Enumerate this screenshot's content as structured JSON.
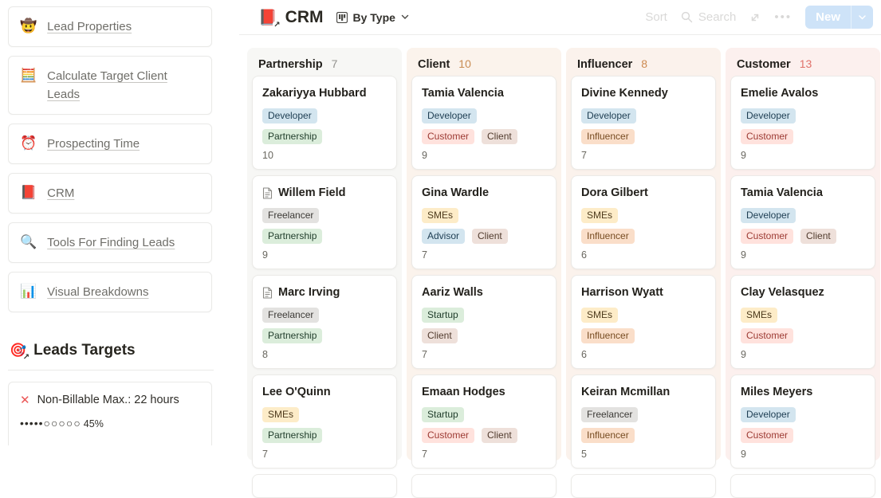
{
  "page": {
    "title": "CRM",
    "title_icon": "📕",
    "link_arrow": "↗"
  },
  "header": {
    "view": {
      "label": "By Type",
      "icon": "board-icon"
    },
    "controls": {
      "sort_label": "Sort",
      "search_label": "Search",
      "more_glyph": "•••",
      "new_label": "New"
    }
  },
  "sidebar": {
    "items": [
      {
        "icon": "🤠",
        "icon_name": "cowboy-emoji-icon",
        "label": "Lead Properties"
      },
      {
        "icon": "🧮",
        "icon_name": "abacus-emoji-icon",
        "label": "Calculate Target Client Leads"
      },
      {
        "icon": "⏰",
        "icon_name": "alarm-clock-emoji-icon",
        "label": "Prospecting Time"
      },
      {
        "icon": "📕",
        "icon_name": "book-emoji-icon",
        "label": "CRM"
      },
      {
        "icon": "🔍",
        "icon_name": "magnifier-emoji-icon",
        "label": "Tools For Finding Leads"
      },
      {
        "icon": "📊",
        "icon_name": "bar-chart-emoji-icon",
        "label": "Visual Breakdowns"
      }
    ],
    "targets": {
      "icon": "🎯",
      "arrow": "↗",
      "heading": "Leads Targets",
      "card": {
        "x_glyph": "✕",
        "label": "Non-Billable Max.: 22 hours",
        "dots": "•••••○○○○○",
        "percent": "45%"
      }
    }
  },
  "board": {
    "tag_palette": {
      "blue": {
        "bg": "#d3e5ef",
        "text": "#1d3d52"
      },
      "green": {
        "bg": "#dbeddb",
        "text": "#1f3c2a"
      },
      "gray": {
        "bg": "#e3e2e0",
        "text": "#3c3a36"
      },
      "yellow": {
        "bg": "#fdecc8",
        "text": "#4d3a1c"
      },
      "orange": {
        "bg": "#fadec9",
        "text": "#774c22"
      },
      "red": {
        "bg": "#ffe2dd",
        "text": "#9c3a33"
      },
      "brown": {
        "bg": "#eee0da",
        "text": "#513b2e"
      }
    },
    "tag_colors": {
      "Developer": "blue",
      "Partnership": "green",
      "Freelancer": "gray",
      "SMEs": "yellow",
      "Customer": "red",
      "Client": "brown",
      "Advisor": "blue",
      "Startup": "green",
      "Influencer": "orange"
    },
    "columns": [
      {
        "name": "Partnership",
        "count": "7",
        "tint": "#f7f7f5",
        "count_color": "#92918d",
        "cards": [
          {
            "name": "Zakariyya Hubbard",
            "page_icon": false,
            "tag_rows": [
              [
                "Developer"
              ],
              [
                "Partnership"
              ]
            ],
            "value": "10"
          },
          {
            "name": "Willem Field",
            "page_icon": true,
            "tag_rows": [
              [
                "Freelancer"
              ],
              [
                "Partnership"
              ]
            ],
            "value": "9"
          },
          {
            "name": "Marc Irving",
            "page_icon": true,
            "tag_rows": [
              [
                "Freelancer"
              ],
              [
                "Partnership"
              ]
            ],
            "value": "8"
          },
          {
            "name": "Lee O'Quinn",
            "page_icon": false,
            "tag_rows": [
              [
                "SMEs"
              ],
              [
                "Partnership"
              ]
            ],
            "value": "7"
          }
        ]
      },
      {
        "name": "Client",
        "count": "10",
        "tint": "#fbf3ec",
        "count_color": "#c98d54",
        "cards": [
          {
            "name": "Tamia Valencia",
            "page_icon": false,
            "tag_rows": [
              [
                "Developer"
              ],
              [
                "Customer",
                "Client"
              ]
            ],
            "value": "9"
          },
          {
            "name": "Gina Wardle",
            "page_icon": false,
            "tag_rows": [
              [
                "SMEs"
              ],
              [
                "Advisor",
                "Client"
              ]
            ],
            "value": "7"
          },
          {
            "name": "Aariz Walls",
            "page_icon": false,
            "tag_rows": [
              [
                "Startup"
              ],
              [
                "Client"
              ]
            ],
            "value": "7"
          },
          {
            "name": "Emaan Hodges",
            "page_icon": false,
            "tag_rows": [
              [
                "Startup"
              ],
              [
                "Customer",
                "Client"
              ]
            ],
            "value": "7"
          }
        ]
      },
      {
        "name": "Influencer",
        "count": "8",
        "tint": "#fbf2ec",
        "count_color": "#cd8a50",
        "cards": [
          {
            "name": "Divine Kennedy",
            "page_icon": false,
            "tag_rows": [
              [
                "Developer"
              ],
              [
                "Influencer"
              ]
            ],
            "value": "7"
          },
          {
            "name": "Dora Gilbert",
            "page_icon": false,
            "tag_rows": [
              [
                "SMEs"
              ],
              [
                "Influencer"
              ]
            ],
            "value": "6"
          },
          {
            "name": "Harrison Wyatt",
            "page_icon": false,
            "tag_rows": [
              [
                "SMEs"
              ],
              [
                "Influencer"
              ]
            ],
            "value": "6"
          },
          {
            "name": "Keiran Mcmillan",
            "page_icon": false,
            "tag_rows": [
              [
                "Freelancer"
              ],
              [
                "Influencer"
              ]
            ],
            "value": "5"
          }
        ]
      },
      {
        "name": "Customer",
        "count": "13",
        "tint": "#fcf0ee",
        "count_color": "#e0716a",
        "cards": [
          {
            "name": "Emelie Avalos",
            "page_icon": false,
            "tag_rows": [
              [
                "Developer"
              ],
              [
                "Customer"
              ]
            ],
            "value": "9"
          },
          {
            "name": "Tamia Valencia",
            "page_icon": false,
            "tag_rows": [
              [
                "Developer"
              ],
              [
                "Customer",
                "Client"
              ]
            ],
            "value": "9"
          },
          {
            "name": "Clay Velasquez",
            "page_icon": false,
            "tag_rows": [
              [
                "SMEs"
              ],
              [
                "Customer"
              ]
            ],
            "value": "9"
          },
          {
            "name": "Miles Meyers",
            "page_icon": false,
            "tag_rows": [
              [
                "Developer"
              ],
              [
                "Customer"
              ]
            ],
            "value": "9"
          }
        ]
      }
    ]
  },
  "colors": {
    "accent_blue": "#2383e2",
    "alert_red": "#eb5757"
  }
}
